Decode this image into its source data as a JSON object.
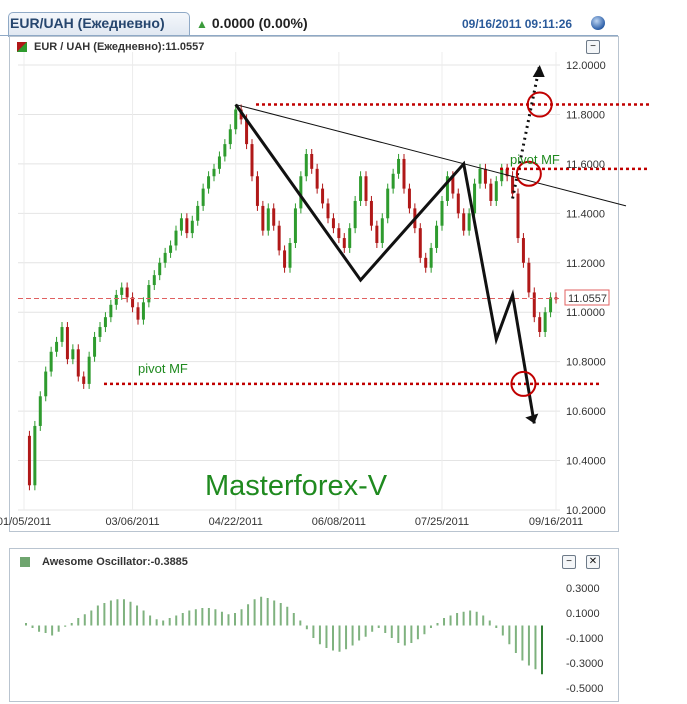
{
  "header": {
    "tab_label": "EUR/UAH (Ежедневно)",
    "change": "0.0000 (0.00%)",
    "timestamp": "09/16/2011 09:11:26"
  },
  "main_panel": {
    "legend": "EUR / UAH (Ежедневно):11.0557",
    "watermark": "Masterforex-V",
    "pivot_labels": [
      "pivot MF",
      "pivot MF"
    ],
    "current_price_tag": "11.0557"
  },
  "oscillator_panel": {
    "legend": "Awesome Oscillator:-0.3885"
  },
  "colors": {
    "up_candle": "#2e9b2e",
    "down_candle": "#b01818",
    "pivot_line": "#c00000",
    "oscillator_bar": "#7fb27f",
    "tab_text": "#26466e"
  },
  "chart_data": [
    {
      "type": "candlestick",
      "title": "EUR / UAH (Ежедневно)",
      "ylim": [
        10.2,
        12.0
      ],
      "y_ticks": [
        "12.0000",
        "11.8000",
        "11.6000",
        "11.4000",
        "11.2000",
        "11.0000",
        "10.8000",
        "10.6000",
        "10.4000",
        "10.2000"
      ],
      "x_ticks": [
        "01/05/2011",
        "03/06/2011",
        "04/22/2011",
        "06/08/2011",
        "07/25/2011",
        "09/16/2011"
      ],
      "x_tick_index": [
        0,
        20,
        39,
        58,
        77,
        98
      ],
      "last_value": 11.0557,
      "close_series": [
        10.5,
        10.3,
        10.54,
        10.66,
        10.76,
        10.84,
        10.88,
        10.94,
        10.81,
        10.85,
        10.74,
        10.71,
        10.82,
        10.9,
        10.94,
        10.98,
        11.03,
        11.07,
        11.1,
        11.06,
        11.02,
        10.97,
        11.04,
        11.11,
        11.15,
        11.2,
        11.24,
        11.27,
        11.33,
        11.38,
        11.32,
        11.37,
        11.43,
        11.5,
        11.55,
        11.58,
        11.63,
        11.68,
        11.74,
        11.82,
        11.78,
        11.68,
        11.55,
        11.43,
        11.33,
        11.42,
        11.35,
        11.25,
        11.18,
        11.28,
        11.42,
        11.55,
        11.64,
        11.58,
        11.5,
        11.44,
        11.38,
        11.34,
        11.3,
        11.26,
        11.34,
        11.45,
        11.55,
        11.45,
        11.35,
        11.28,
        11.38,
        11.5,
        11.56,
        11.62,
        11.5,
        11.42,
        11.34,
        11.22,
        11.18,
        11.26,
        11.35,
        11.45,
        11.55,
        11.48,
        11.4,
        11.33,
        11.4,
        11.52,
        11.58,
        11.52,
        11.45,
        11.53,
        11.58,
        11.55,
        11.48,
        11.3,
        11.2,
        11.08,
        10.98,
        10.92,
        11.0,
        11.06,
        11.0557
      ],
      "annotations": {
        "pivot_high": 11.84,
        "pivot_mid": 11.58,
        "pivot_low": 10.71,
        "current_price_line": 11.0557,
        "zigzag": [
          [
            39,
            11.84
          ],
          [
            62,
            11.13
          ],
          [
            81,
            11.6
          ],
          [
            87,
            10.89
          ],
          [
            90,
            11.07
          ],
          [
            94,
            10.55
          ]
        ],
        "projection_dotted": [
          [
            90,
            11.46
          ],
          [
            95,
            12.0
          ]
        ],
        "trendline": [
          [
            39,
            11.84
          ],
          [
            100,
            11.43
          ]
        ],
        "targets": [
          [
            95,
            11.84
          ],
          [
            93,
            11.56
          ],
          [
            92,
            10.71
          ]
        ]
      }
    },
    {
      "type": "bar",
      "title": "Awesome Oscillator",
      "ylim": [
        -0.5,
        0.3
      ],
      "y_ticks": [
        "0.3000",
        "0.1000",
        "-0.1000",
        "-0.3000",
        "-0.5000"
      ],
      "last_value": -0.3885,
      "values": [
        0.02,
        -0.02,
        -0.05,
        -0.06,
        -0.08,
        -0.05,
        -0.01,
        0.02,
        0.06,
        0.09,
        0.12,
        0.16,
        0.18,
        0.2,
        0.21,
        0.21,
        0.19,
        0.16,
        0.12,
        0.08,
        0.05,
        0.04,
        0.06,
        0.08,
        0.1,
        0.12,
        0.13,
        0.14,
        0.14,
        0.13,
        0.11,
        0.09,
        0.1,
        0.13,
        0.17,
        0.21,
        0.23,
        0.22,
        0.2,
        0.18,
        0.15,
        0.1,
        0.04,
        -0.03,
        -0.1,
        -0.15,
        -0.18,
        -0.2,
        -0.21,
        -0.19,
        -0.16,
        -0.12,
        -0.09,
        -0.05,
        -0.02,
        -0.06,
        -0.1,
        -0.14,
        -0.16,
        -0.14,
        -0.11,
        -0.07,
        -0.02,
        0.02,
        0.06,
        0.08,
        0.1,
        0.11,
        0.12,
        0.11,
        0.08,
        0.04,
        -0.02,
        -0.08,
        -0.15,
        -0.22,
        -0.28,
        -0.32,
        -0.35,
        -0.39
      ]
    }
  ]
}
